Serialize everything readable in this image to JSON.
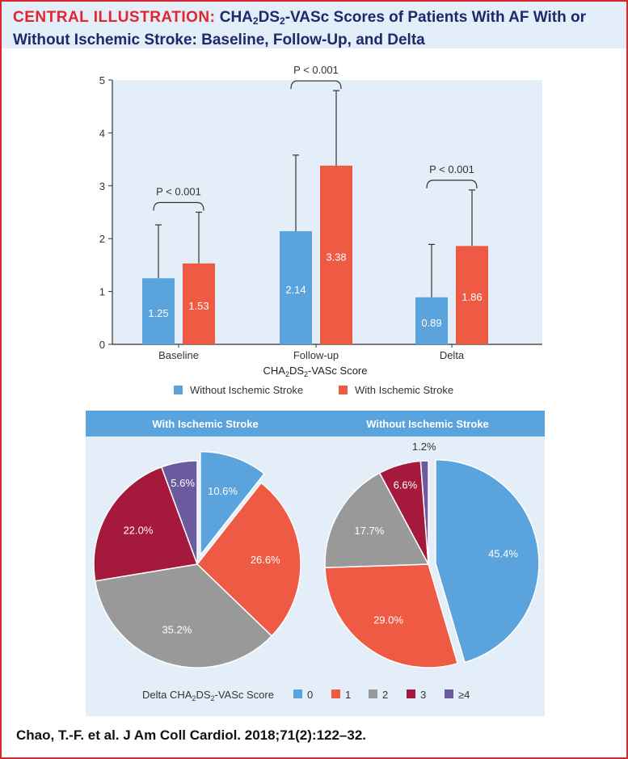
{
  "header": {
    "lead": "CENTRAL ILLUSTRATION:",
    "title_pre": "CHA",
    "title_sub1": "2",
    "title_mid": "DS",
    "title_sub2": "2",
    "title_post": "-VASc Scores of Patients With AF With or Without Ischemic Stroke: Baseline, Follow-Up, and Delta"
  },
  "footer": {
    "citation": "Chao, T.-F. et al. J Am Coll Cardiol. 2018;71(2):122–32."
  },
  "colors": {
    "blue": "#5ba3dc",
    "red": "#ef5a45",
    "gray": "#999999",
    "crimson": "#a51a3c",
    "purple": "#6b5b9e",
    "panel": "#e3eef8",
    "title_red": "#e0262f",
    "title_navy": "#1c2a6b"
  },
  "chart_data": [
    {
      "type": "bar",
      "categories": [
        "Baseline",
        "Follow-up",
        "Delta"
      ],
      "xlabel": "CHA2DS2-VASc Score",
      "ylim": [
        0,
        5
      ],
      "yticks": [
        "0",
        "1",
        "2",
        "3",
        "4",
        "5"
      ],
      "series": [
        {
          "name": "Without Ischemic Stroke",
          "values": [
            1.25,
            2.14,
            0.89
          ],
          "labels": [
            "1.25",
            "2.14",
            "0.89"
          ],
          "error_upper": [
            2.26,
            3.58,
            1.89
          ],
          "color": "#5ba3dc"
        },
        {
          "name": "With Ischemic Stroke",
          "values": [
            1.53,
            3.38,
            1.86
          ],
          "labels": [
            "1.53",
            "3.38",
            "1.86"
          ],
          "error_upper": [
            2.5,
            4.8,
            2.92
          ],
          "color": "#ef5a45"
        }
      ],
      "annotations": [
        "P < 0.001",
        "P < 0.001",
        "P < 0.001"
      ],
      "legend": "bottom"
    },
    {
      "type": "pie",
      "title": "With Ischemic Stroke",
      "categories": [
        "0",
        "1",
        "2",
        "3",
        "≥4"
      ],
      "values": [
        10.6,
        26.6,
        35.2,
        22.0,
        5.6
      ],
      "labels": [
        "10.6%",
        "26.6%",
        "35.2%",
        "22.0%",
        "5.6%"
      ],
      "exploded": "0"
    },
    {
      "type": "pie",
      "title": "Without Ischemic Stroke",
      "categories": [
        "0",
        "1",
        "2",
        "3",
        "≥4"
      ],
      "values": [
        45.4,
        29.0,
        17.7,
        6.6,
        1.2
      ],
      "labels": [
        "45.4%",
        "29.0%",
        "17.7%",
        "6.6%",
        "1.2%"
      ],
      "exploded": "0"
    }
  ],
  "pie_legend": {
    "title_pre": "Delta CHA",
    "title_sub1": "2",
    "title_mid": "DS",
    "title_sub2": "2",
    "title_post": "-VASc Score",
    "items": [
      "0",
      "1",
      "2",
      "3",
      "≥4"
    ]
  }
}
